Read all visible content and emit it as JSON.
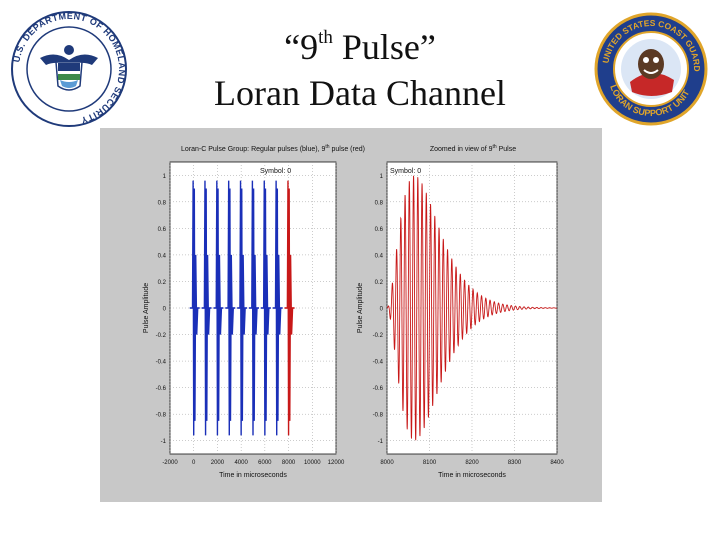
{
  "slide": {
    "title_line1_open": "“9",
    "title_line1_sup": "th",
    "title_line1_rest": " Pulse”",
    "title_line2": "Loran Data Channel"
  },
  "logos": {
    "dhs": {
      "name": "U.S. Department of Homeland Security seal",
      "text": "U.S. DEPARTMENT OF HOMELAND SECURITY"
    },
    "uscg": {
      "name": "United States Coast Guard Loran Support Unit patch",
      "text": "UNITED STATES COAST GUARD LORAN SUPPORT UNIT"
    }
  },
  "colors": {
    "figure_bg": "#c8c8c8",
    "axes_bg": "#ffffff",
    "blue_pulse": "#1a2fb8",
    "red_pulse": "#c81818",
    "dhs_blue": "#1f3a7a",
    "uscg_blue": "#1f3e8c",
    "uscg_red": "#c62828",
    "uscg_gold": "#e0a52a"
  },
  "chart_data": [
    {
      "type": "line",
      "title": "Loran-C Pulse Group: Regular pulses (blue), 9",
      "title_sup": "th",
      "title_tail": " pulse (red)",
      "annotation": "Symbol: 0",
      "xlabel": "Time in microseconds",
      "ylabel": "Pulse Amplitude",
      "xlim": [
        -2000,
        12000
      ],
      "ylim": [
        -1.1,
        1.1
      ],
      "xticks": [
        "-2000",
        "0",
        "2000",
        "4000",
        "6000",
        "8000",
        "10000",
        "12000"
      ],
      "yticks": [
        "1",
        "0.8",
        "0.6",
        "0.4",
        "0.2",
        "0",
        "-0.2",
        "-0.4",
        "-0.6",
        "-0.8",
        "-1"
      ],
      "grid": true,
      "series": [
        {
          "color": "#1a2fb8",
          "pulse_starts": [
            0,
            1000,
            2000,
            3000,
            4000,
            5000,
            6000,
            7000
          ],
          "amplitude": 1.0
        },
        {
          "color": "#c81818",
          "pulse_starts": [
            8000
          ],
          "amplitude": 1.0
        }
      ]
    },
    {
      "type": "line",
      "title": "Zoomed in view of 9",
      "title_sup": "th",
      "title_tail": " Pulse",
      "annotation": "Symbol: 0",
      "xlabel": "Time in microseconds",
      "ylabel": "Pulse Amplitude",
      "xlim": [
        8000,
        8400
      ],
      "ylim": [
        -1.1,
        1.1
      ],
      "xticks": [
        "8000",
        "8100",
        "8200",
        "8300",
        "8400"
      ],
      "yticks": [
        "1",
        "0.8",
        "0.6",
        "0.4",
        "0.2",
        "0",
        "-0.2",
        "-0.4",
        "-0.6",
        "-0.8",
        "-1"
      ],
      "grid": true,
      "series": [
        {
          "color": "#c81818",
          "pulse_start": 8000,
          "carrier_khz": 100,
          "peak_time": 8065,
          "amplitude": 1.0
        }
      ]
    }
  ]
}
